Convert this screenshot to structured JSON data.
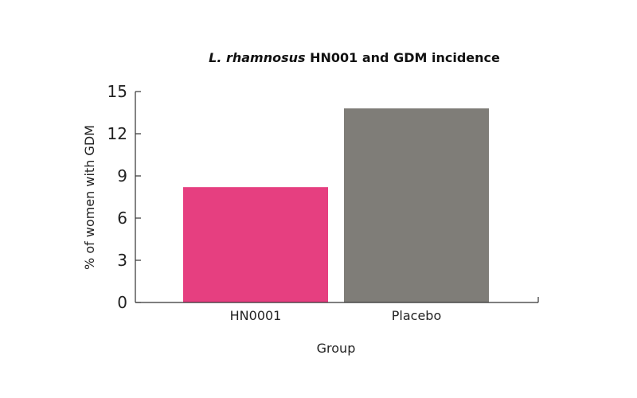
{
  "chart_data": {
    "type": "bar",
    "title_italic": "L. rhamnosus",
    "title_rest": " HN001 and GDM incidence",
    "xlabel": "Group",
    "ylabel": "% of women with GDM",
    "categories": [
      "HN0001",
      "Placebo"
    ],
    "values": [
      8.2,
      13.8
    ],
    "bar_colors": [
      "#e63f80",
      "#7f7d78"
    ],
    "ylim": [
      0,
      15
    ],
    "yticks": [
      "0",
      "3",
      "6",
      "9",
      "12",
      "15"
    ],
    "grid": false,
    "legend": "none"
  }
}
